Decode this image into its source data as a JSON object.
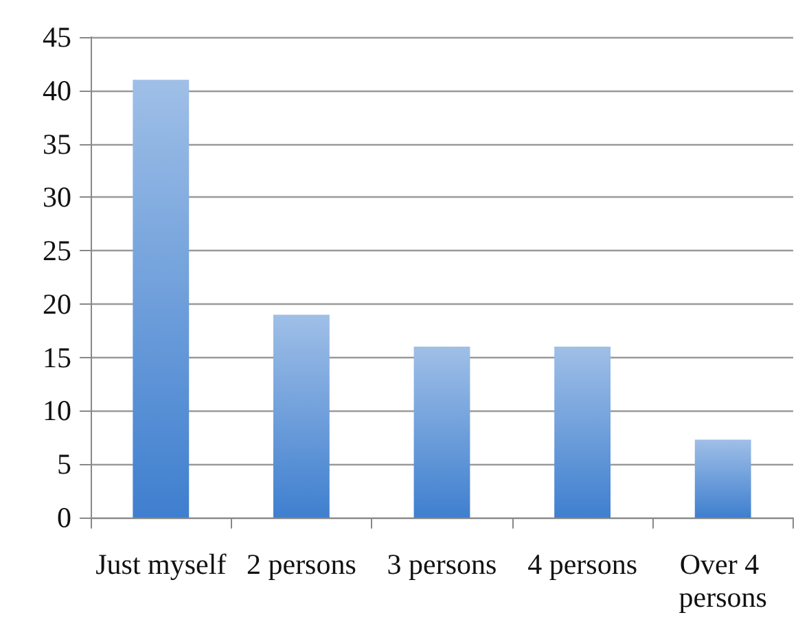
{
  "chart_data": {
    "type": "bar",
    "categories": [
      "Just myself",
      "2 persons",
      "3 persons",
      "4 persons",
      "Over 4 persons"
    ],
    "values": [
      41,
      19,
      16,
      16,
      7.3
    ],
    "color": "#3f7fcf",
    "ylim": [
      0,
      45
    ],
    "yticks": [
      0,
      5,
      10,
      15,
      20,
      25,
      30,
      35,
      40,
      45
    ],
    "grid": "y"
  }
}
